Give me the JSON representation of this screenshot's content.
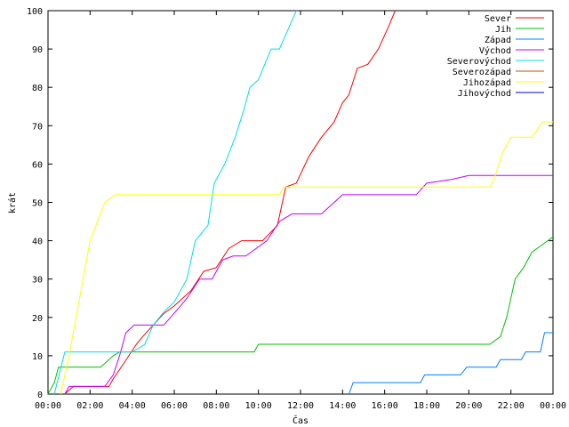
{
  "chart_data": {
    "type": "line",
    "title": "",
    "xlabel": "Čas",
    "ylabel": "krát",
    "xlim": [
      0,
      24
    ],
    "ylim": [
      0,
      100
    ],
    "x_ticks": [
      "00:00",
      "02:00",
      "04:00",
      "06:00",
      "08:00",
      "10:00",
      "12:00",
      "14:00",
      "16:00",
      "18:00",
      "20:00",
      "22:00",
      "00:00"
    ],
    "y_ticks": [
      0,
      10,
      20,
      30,
      40,
      50,
      60,
      70,
      80,
      90,
      100
    ],
    "grid": false,
    "legend_position": "top-right",
    "series": [
      {
        "name": "Sever",
        "color": "#ff0000",
        "x": [
          0.8,
          1.2,
          1.8,
          2.9,
          3.1,
          3.6,
          4.2,
          4.5,
          5.0,
          5.5,
          6.0,
          6.8,
          7.4,
          8.0,
          8.6,
          9.2,
          10.2,
          10.9,
          11.3,
          11.8,
          12.4,
          13.0,
          13.6,
          14.0,
          14.3,
          14.7,
          15.2,
          15.7,
          16.2,
          16.5
        ],
        "y": [
          0,
          2,
          2,
          2,
          4,
          8,
          13,
          15,
          18,
          21,
          23,
          27,
          32,
          33,
          38,
          40,
          40,
          44,
          54,
          55,
          62,
          67,
          71,
          76,
          78,
          85,
          86,
          90,
          96,
          100
        ]
      },
      {
        "name": "Jih",
        "color": "#00c000",
        "x": [
          0,
          0.3,
          0.5,
          2.5,
          3.1,
          3.4,
          8.0,
          9.8,
          10.0,
          12.0,
          21.0,
          21.5,
          21.8,
          22.2,
          22.6,
          23.0,
          23.5,
          24.0
        ],
        "y": [
          0,
          3,
          7,
          7,
          10,
          11,
          11,
          11,
          13,
          13,
          13,
          15,
          20,
          30,
          33,
          37,
          39,
          41
        ]
      },
      {
        "name": "Západ",
        "color": "#0080ff",
        "x": [
          14.3,
          14.5,
          17.7,
          17.9,
          19.6,
          19.9,
          21.3,
          21.5,
          22.5,
          22.7,
          23.4,
          23.6,
          24.0
        ],
        "y": [
          0,
          3,
          3,
          5,
          5,
          7,
          7,
          9,
          9,
          11,
          11,
          16,
          16
        ]
      },
      {
        "name": "Východ",
        "color": "#c000ff",
        "x": [
          0.8,
          1.0,
          2.7,
          3.1,
          3.4,
          3.7,
          4.1,
          5.5,
          6.3,
          6.6,
          7.2,
          7.8,
          8.3,
          8.8,
          9.4,
          10.4,
          11.0,
          11.6,
          13.0,
          14.0,
          17.5,
          18.0,
          19.2,
          20.0,
          21.3,
          21.5,
          24.0
        ],
        "y": [
          0,
          2,
          2,
          5,
          10,
          16,
          18,
          18,
          23,
          25,
          30,
          30,
          35,
          36,
          36,
          40,
          45,
          47,
          47,
          52,
          52,
          55,
          56,
          57,
          57,
          57,
          57
        ]
      },
      {
        "name": "Severovýchod",
        "color": "#00e0e0",
        "x": [
          0.3,
          0.8,
          2.8,
          3.5,
          4.0,
          4.6,
          5.0,
          5.6,
          6.0,
          6.6,
          7.0,
          7.6,
          7.9,
          8.4,
          8.9,
          9.3,
          9.6,
          10.0,
          10.6,
          11.0,
          11.4,
          11.8
        ],
        "y": [
          0,
          11,
          11,
          11,
          11,
          13,
          18,
          22,
          24,
          30,
          40,
          44,
          55,
          60,
          67,
          74,
          80,
          82,
          90,
          90,
          95,
          100
        ]
      },
      {
        "name": "Severozápad",
        "color": "#c05000",
        "x": [],
        "y": []
      },
      {
        "name": "Jihozápad",
        "color": "#ffff00",
        "x": [
          0.6,
          1.0,
          1.5,
          2.0,
          2.7,
          3.2,
          3.6,
          4.5,
          8.0,
          10.0,
          11.0,
          11.2,
          12.0,
          17.0,
          21.0,
          21.2,
          21.6,
          22.0,
          23.0,
          23.5,
          24.0
        ],
        "y": [
          0,
          10,
          25,
          40,
          50,
          52,
          52,
          52,
          52,
          52,
          52,
          54,
          54,
          54,
          54,
          56,
          63,
          67,
          67,
          71,
          71
        ]
      },
      {
        "name": "Jihovýchod",
        "color": "#0000c0",
        "x": [],
        "y": []
      }
    ]
  }
}
